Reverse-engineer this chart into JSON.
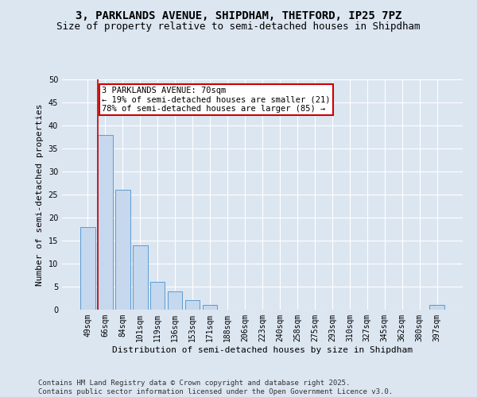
{
  "title1": "3, PARKLANDS AVENUE, SHIPDHAM, THETFORD, IP25 7PZ",
  "title2": "Size of property relative to semi-detached houses in Shipdham",
  "xlabel": "Distribution of semi-detached houses by size in Shipdham",
  "ylabel": "Number of semi-detached properties",
  "categories": [
    "49sqm",
    "66sqm",
    "84sqm",
    "101sqm",
    "119sqm",
    "136sqm",
    "153sqm",
    "171sqm",
    "188sqm",
    "206sqm",
    "223sqm",
    "240sqm",
    "258sqm",
    "275sqm",
    "293sqm",
    "310sqm",
    "327sqm",
    "345sqm",
    "362sqm",
    "380sqm",
    "397sqm"
  ],
  "values": [
    18,
    38,
    26,
    14,
    6,
    4,
    2,
    1,
    0,
    0,
    0,
    0,
    0,
    0,
    0,
    0,
    0,
    0,
    0,
    0,
    1
  ],
  "bar_color": "#c5d8ed",
  "bar_edge_color": "#5b9bd5",
  "subject_line_color": "#cc0000",
  "annotation_text": "3 PARKLANDS AVENUE: 70sqm\n← 19% of semi-detached houses are smaller (21)\n78% of semi-detached houses are larger (85) →",
  "annotation_box_color": "#ffffff",
  "annotation_box_edge_color": "#cc0000",
  "ylim": [
    0,
    50
  ],
  "yticks": [
    0,
    5,
    10,
    15,
    20,
    25,
    30,
    35,
    40,
    45,
    50
  ],
  "footer_text": "Contains HM Land Registry data © Crown copyright and database right 2025.\nContains public sector information licensed under the Open Government Licence v3.0.",
  "bg_color": "#dce6f1",
  "plot_bg_color": "#dce6f1",
  "grid_color": "#ffffff",
  "title1_fontsize": 10,
  "title2_fontsize": 9,
  "axis_label_fontsize": 8,
  "tick_fontsize": 7,
  "annotation_fontsize": 7.5,
  "footer_fontsize": 6.5
}
